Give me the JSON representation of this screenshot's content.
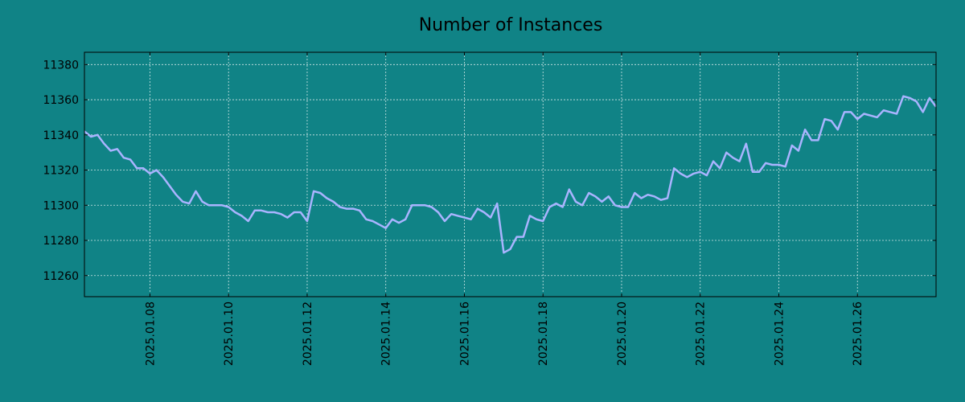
{
  "chart_data": {
    "type": "line",
    "title": "Number of Instances",
    "xlabel": "",
    "ylabel": "",
    "grid": true,
    "colors": {
      "background": "#108386",
      "line": "#a9b4ff",
      "grid": "#cfe6e6",
      "axis": "#000000"
    },
    "xlim": [
      "2025-01-06T08:00",
      "2025-01-28T00:00"
    ],
    "ylim": [
      11248,
      11387
    ],
    "x_ticks": [
      "2025.01.08",
      "2025.01.10",
      "2025.01.12",
      "2025.01.14",
      "2025.01.16",
      "2025.01.18",
      "2025.01.20",
      "2025.01.22",
      "2025.01.24",
      "2025.01.26"
    ],
    "y_ticks": [
      "11260",
      "11280",
      "11300",
      "11320",
      "11340",
      "11360",
      "11380"
    ],
    "series": [
      {
        "x": [
          "2025-01-06T08:00",
          "2025-01-06T12:00",
          "2025-01-06T16:00",
          "2025-01-06T20:00",
          "2025-01-07T00:00",
          "2025-01-07T04:00",
          "2025-01-07T08:00",
          "2025-01-07T12:00",
          "2025-01-07T16:00",
          "2025-01-07T20:00",
          "2025-01-08T00:00",
          "2025-01-08T04:00",
          "2025-01-08T08:00",
          "2025-01-08T12:00",
          "2025-01-08T16:00",
          "2025-01-08T20:00",
          "2025-01-09T00:00",
          "2025-01-09T04:00",
          "2025-01-09T08:00",
          "2025-01-09T12:00",
          "2025-01-09T16:00",
          "2025-01-09T20:00",
          "2025-01-10T00:00",
          "2025-01-10T04:00",
          "2025-01-10T08:00",
          "2025-01-10T12:00",
          "2025-01-10T16:00",
          "2025-01-10T20:00",
          "2025-01-11T00:00",
          "2025-01-11T04:00",
          "2025-01-11T08:00",
          "2025-01-11T12:00",
          "2025-01-11T16:00",
          "2025-01-11T20:00",
          "2025-01-12T00:00",
          "2025-01-12T04:00",
          "2025-01-12T08:00",
          "2025-01-12T12:00",
          "2025-01-12T16:00",
          "2025-01-12T20:00",
          "2025-01-13T00:00",
          "2025-01-13T04:00",
          "2025-01-13T08:00",
          "2025-01-13T12:00",
          "2025-01-13T16:00",
          "2025-01-13T20:00",
          "2025-01-14T00:00",
          "2025-01-14T04:00",
          "2025-01-14T08:00",
          "2025-01-14T12:00",
          "2025-01-14T16:00",
          "2025-01-14T20:00",
          "2025-01-15T00:00",
          "2025-01-15T04:00",
          "2025-01-15T08:00",
          "2025-01-15T12:00",
          "2025-01-15T16:00",
          "2025-01-15T20:00",
          "2025-01-16T00:00",
          "2025-01-16T04:00",
          "2025-01-16T08:00",
          "2025-01-16T12:00",
          "2025-01-16T16:00",
          "2025-01-16T20:00",
          "2025-01-17T00:00",
          "2025-01-17T04:00",
          "2025-01-17T08:00",
          "2025-01-17T12:00",
          "2025-01-17T16:00",
          "2025-01-17T20:00",
          "2025-01-18T00:00",
          "2025-01-18T04:00",
          "2025-01-18T08:00",
          "2025-01-18T12:00",
          "2025-01-18T16:00",
          "2025-01-18T20:00",
          "2025-01-19T00:00",
          "2025-01-19T04:00",
          "2025-01-19T08:00",
          "2025-01-19T12:00",
          "2025-01-19T16:00",
          "2025-01-19T20:00",
          "2025-01-20T00:00",
          "2025-01-20T04:00",
          "2025-01-20T08:00",
          "2025-01-20T12:00",
          "2025-01-20T16:00",
          "2025-01-20T20:00",
          "2025-01-21T00:00",
          "2025-01-21T04:00",
          "2025-01-21T08:00",
          "2025-01-21T12:00",
          "2025-01-21T16:00",
          "2025-01-21T20:00",
          "2025-01-22T00:00",
          "2025-01-22T04:00",
          "2025-01-22T08:00",
          "2025-01-22T12:00",
          "2025-01-22T16:00",
          "2025-01-22T20:00",
          "2025-01-23T00:00",
          "2025-01-23T04:00",
          "2025-01-23T08:00",
          "2025-01-23T12:00",
          "2025-01-23T16:00",
          "2025-01-23T20:00",
          "2025-01-24T00:00",
          "2025-01-24T04:00",
          "2025-01-24T08:00",
          "2025-01-24T12:00",
          "2025-01-24T16:00",
          "2025-01-24T20:00",
          "2025-01-25T00:00",
          "2025-01-25T04:00",
          "2025-01-25T08:00",
          "2025-01-25T12:00",
          "2025-01-25T16:00",
          "2025-01-25T20:00",
          "2025-01-26T00:00",
          "2025-01-26T04:00",
          "2025-01-26T08:00",
          "2025-01-26T12:00",
          "2025-01-26T16:00",
          "2025-01-26T20:00",
          "2025-01-27T00:00",
          "2025-01-27T04:00",
          "2025-01-27T08:00",
          "2025-01-27T12:00",
          "2025-01-27T16:00",
          "2025-01-27T20:00",
          "2025-01-28T00:00"
        ],
        "y": [
          11342,
          11339,
          11340,
          11335,
          11331,
          11332,
          11327,
          11326,
          11321,
          11321,
          11318,
          11320,
          11316,
          11311,
          11306,
          11302,
          11301,
          11308,
          11302,
          11300,
          11300,
          11300,
          11299,
          11296,
          11294,
          11291,
          11297,
          11297,
          11296,
          11296,
          11295,
          11293,
          11296,
          11296,
          11291,
          11308,
          11307,
          11304,
          11302,
          11299,
          11298,
          11298,
          11297,
          11292,
          11291,
          11289,
          11287,
          11292,
          11290,
          11292,
          11300,
          11300,
          11300,
          11299,
          11296,
          11291,
          11295,
          11294,
          11293,
          11292,
          11298,
          11296,
          11293,
          11301,
          11273,
          11275,
          11282,
          11282,
          11294,
          11292,
          11291,
          11299,
          11301,
          11299,
          11309,
          11302,
          11300,
          11307,
          11305,
          11302,
          11305,
          11300,
          11299,
          11299,
          11307,
          11304,
          11306,
          11305,
          11303,
          11304,
          11321,
          11318,
          11316,
          11318,
          11319,
          11317,
          11325,
          11321,
          11330,
          11327,
          11325,
          11335,
          11319,
          11319,
          11324,
          11323,
          11323,
          11322,
          11334,
          11331,
          11343,
          11337,
          11337,
          11349,
          11348,
          11343,
          11353,
          11353,
          11349,
          11352,
          11351,
          11350,
          11354,
          11353,
          11352,
          11362,
          11361,
          11359,
          11353,
          11361,
          11356
        ]
      }
    ]
  }
}
